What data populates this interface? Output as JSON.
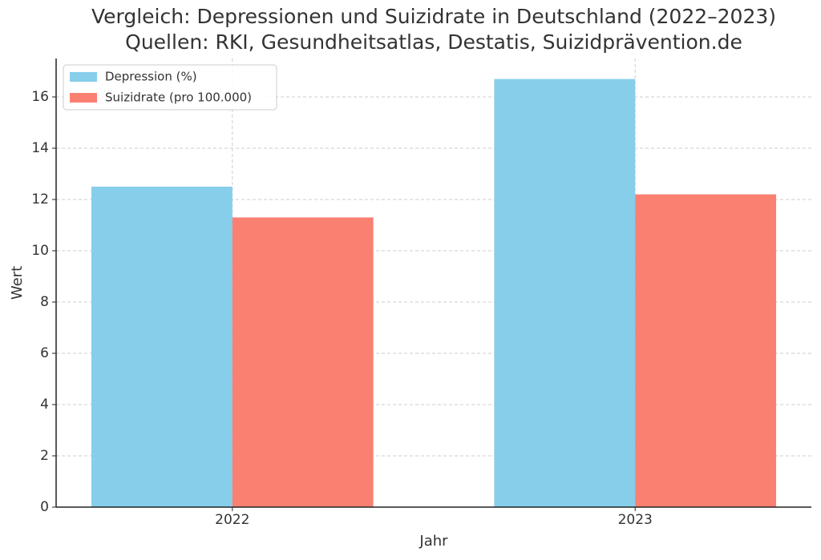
{
  "chart_data": {
    "type": "bar",
    "title": "Vergleich: Depressionen und Suizidrate in Deutschland (2022–2023)",
    "subtitle": "Quellen: RKI, Gesundheitsatlas, Destatis, Suizidprävention.de",
    "x_label": "Jahr",
    "y_label": "Wert",
    "categories": [
      "2022",
      "2023"
    ],
    "series": [
      {
        "name": "Depression (%)",
        "color": "#87ceeb",
        "values": [
          12.5,
          16.7
        ]
      },
      {
        "name": "Suizidrate (pro 100.000)",
        "color": "#fa8072",
        "values": [
          11.3,
          12.2
        ]
      }
    ],
    "ylim": [
      0,
      17.5
    ],
    "yticks": [
      0,
      2,
      4,
      6,
      8,
      10,
      12,
      14,
      16
    ],
    "grid": true,
    "legend": "upper-left"
  }
}
